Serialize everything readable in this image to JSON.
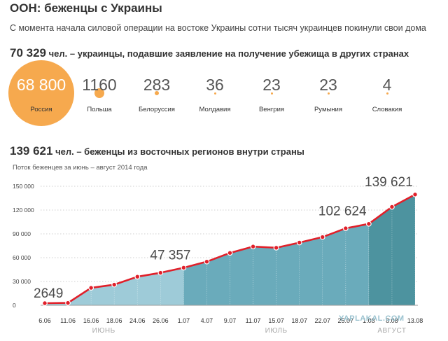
{
  "header": {
    "title": "ООН: беженцы с Украины",
    "subtitle": "С момента начала силовой операции на востоке Украины сотни тысяч украинцев покинули свои дома"
  },
  "section1": {
    "number": "70 329",
    "text": " чел. – украинцы, подавшие заявление на получение убежища в других странах"
  },
  "countries": [
    {
      "value": "68 800",
      "n": 68800,
      "label": "Россия"
    },
    {
      "value": "1160",
      "n": 1160,
      "label": "Польша"
    },
    {
      "value": "283",
      "n": 283,
      "label": "Белоруссия"
    },
    {
      "value": "36",
      "n": 36,
      "label": "Молдавия"
    },
    {
      "value": "23",
      "n": 23,
      "label": "Венгрия"
    },
    {
      "value": "23",
      "n": 23,
      "label": "Румыния"
    },
    {
      "value": "4",
      "n": 4,
      "label": "Словакия"
    }
  ],
  "section2": {
    "number": "139 621",
    "text": " чел. – беженцы из восточных регионов внутри страны",
    "chart_subtitle": "Поток беженцев за июнь – август 2014 года"
  },
  "watermark": "YAPLAKAL.COM",
  "colors": {
    "orange": "#f6a94e",
    "june": "#9ecbd8",
    "july": "#6aabbb",
    "august": "#4d939f",
    "line": "#e0202a"
  },
  "chart_data": {
    "type": "area",
    "title": "Поток беженцев за июнь – август 2014 года",
    "x": [
      "6.06",
      "11.06",
      "16.06",
      "18.06",
      "24.06",
      "26.06",
      "1.07",
      "4.07",
      "9.07",
      "11.07",
      "15.07",
      "18.07",
      "22.07",
      "25.07",
      "1.08",
      "8.08",
      "13.08"
    ],
    "y": [
      2649,
      3000,
      22000,
      26000,
      36000,
      41000,
      47357,
      55000,
      66000,
      74000,
      72500,
      79000,
      86000,
      97000,
      102624,
      124000,
      139621
    ],
    "months": [
      {
        "label": "ИЮНЬ",
        "from": 0,
        "to": 6
      },
      {
        "label": "ИЮЛЬ",
        "from": 6,
        "to": 14
      },
      {
        "label": "АВГУСТ",
        "from": 14,
        "to": 16
      }
    ],
    "yticks": [
      0,
      30000,
      60000,
      90000,
      120000,
      150000
    ],
    "ytick_labels": [
      "0",
      "30 000",
      "60 000",
      "90 000",
      "120 000",
      "150 000"
    ],
    "ylim": [
      0,
      150000
    ],
    "annotations": [
      {
        "index": 0,
        "text": "2649"
      },
      {
        "index": 6,
        "text": "47 357"
      },
      {
        "index": 14,
        "text": "102 624"
      },
      {
        "index": 16,
        "text": "139 621"
      }
    ],
    "grid": true
  }
}
